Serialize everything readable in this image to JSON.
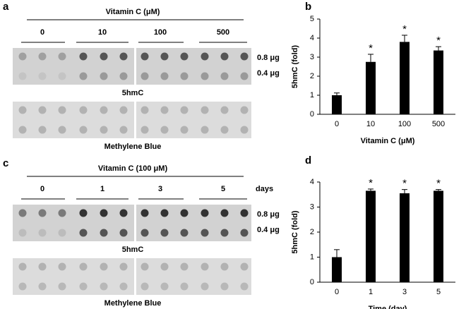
{
  "panels": [
    {
      "label": "a",
      "header": "Vitamin C (μM)",
      "groups": [
        "0",
        "10",
        "100",
        "500"
      ],
      "rows": [
        "0.8 μg",
        "0.4 μg"
      ],
      "blots": [
        "5hmC",
        "Methylene Blue"
      ]
    },
    {
      "label": "c",
      "header": "Vitamin C (100 μM)",
      "groups": [
        "0",
        "1",
        "3",
        "5"
      ],
      "unit": "days",
      "rows": [
        "0.8 μg",
        "0.4 μg"
      ],
      "blots": [
        "5hmC",
        "Methylene Blue"
      ]
    }
  ],
  "chart_data": [
    {
      "type": "bar",
      "panel": "b",
      "ylabel": "5hmC (fold)",
      "xlabel": "Vitamin C (μM)",
      "categories": [
        "0",
        "10",
        "100",
        "500"
      ],
      "values": [
        1.0,
        2.75,
        3.8,
        3.35
      ],
      "errors": [
        0.12,
        0.4,
        0.35,
        0.2
      ],
      "significance": [
        null,
        "*",
        "*",
        "*"
      ],
      "color": "#000000",
      "ylim": [
        0,
        5
      ],
      "yticks": [
        0,
        1,
        2,
        3,
        4,
        5
      ]
    },
    {
      "type": "bar",
      "panel": "d",
      "ylabel": "5hmC (fold)",
      "xlabel": "Time (day)",
      "categories": [
        "0",
        "1",
        "3",
        "5"
      ],
      "values": [
        1.0,
        3.65,
        3.55,
        3.65
      ],
      "errors": [
        0.3,
        0.07,
        0.15,
        0.05
      ],
      "significance": [
        null,
        "*",
        "*",
        "*"
      ],
      "color": "#000000",
      "ylim": [
        0,
        4
      ],
      "yticks": [
        0,
        1,
        2,
        3,
        4
      ]
    }
  ]
}
